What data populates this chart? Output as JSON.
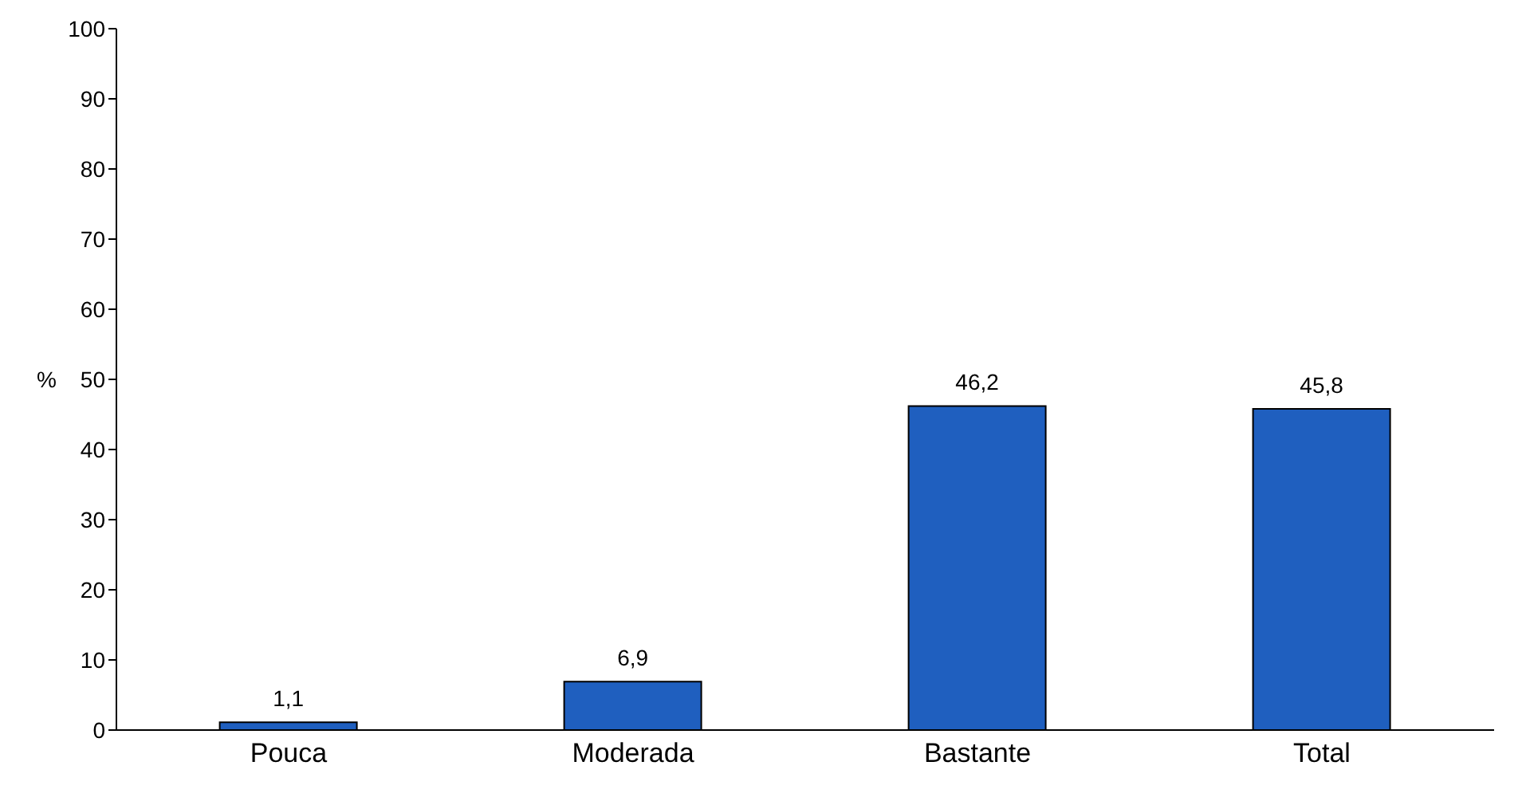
{
  "chart_data": {
    "type": "bar",
    "ylabel": "%",
    "categories": [
      "Pouca",
      "Moderada",
      "Bastante",
      "Total"
    ],
    "values": [
      1.1,
      6.9,
      46.2,
      45.8
    ],
    "value_labels": [
      "1,1",
      "6,9",
      "46,2",
      "45,8"
    ],
    "color": "#1f5fbf",
    "ylim": [
      0,
      100
    ],
    "yticks": [
      0,
      10,
      20,
      30,
      40,
      50,
      60,
      70,
      80,
      90,
      100
    ],
    "grid": false
  }
}
